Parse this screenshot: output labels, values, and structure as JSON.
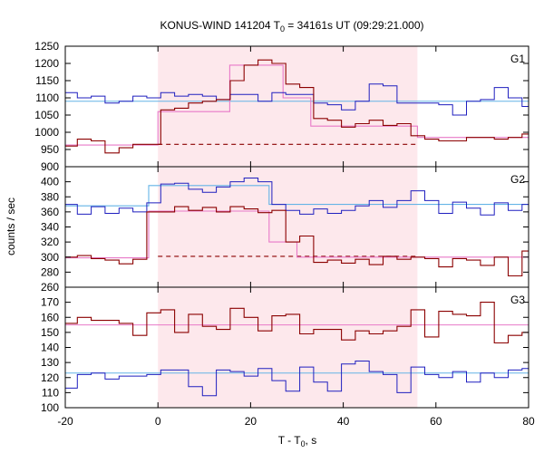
{
  "chart_data": {
    "type": "line",
    "title": "KONUS-WIND 141204 T",
    "title_sub": "0",
    "title_rest": " = 34161s UT (09:29:21.000)",
    "xlabel": "T - T",
    "xlabel_sub": "0",
    "xlabel_rest": ", s",
    "ylabel": "counts / sec",
    "xlim": [
      -20,
      80
    ],
    "x_ticks": [
      "-20",
      "0",
      "20",
      "40",
      "60",
      "80"
    ],
    "shaded_region": {
      "x": [
        0,
        56
      ],
      "color": "#fde8ec"
    },
    "colors": {
      "red": "#8b0000",
      "blue": "#1f1fbf",
      "pink": "#e879c8",
      "cyan": "#64b4e6"
    },
    "panels": [
      {
        "label": "G1",
        "ylim": [
          900,
          1250
        ],
        "y_ticks": [
          "900",
          "950",
          "1000",
          "1050",
          "1100",
          "1150",
          "1200",
          "1250"
        ],
        "bin_edges": [
          -20,
          -17.4,
          -14.4,
          -11.4,
          -8.4,
          -5.4,
          -2.4,
          0.6,
          3.6,
          6.6,
          9.6,
          12.6,
          15.6,
          18.6,
          21.6,
          24.6,
          27.6,
          30.6,
          33.6,
          36.6,
          39.6,
          42.6,
          45.6,
          48.6,
          51.6,
          54.6,
          57.6,
          60.6,
          63.6,
          66.6,
          69.6,
          72.6,
          75.6,
          78.6,
          80
        ],
        "blue": [
          1115,
          1100,
          1105,
          1085,
          1090,
          1105,
          1100,
          1115,
          1105,
          1110,
          1105,
          1095,
          1110,
          1110,
          1090,
          1115,
          1110,
          1110,
          1085,
          1080,
          1065,
          1090,
          1140,
          1135,
          1085,
          1085,
          1085,
          1080,
          1050,
          1090,
          1095,
          1130,
          1100,
          1075
        ],
        "red": [
          960,
          980,
          975,
          940,
          955,
          965,
          965,
          1065,
          1070,
          1085,
          1090,
          1095,
          1150,
          1195,
          1210,
          1200,
          1140,
          1130,
          1040,
          1035,
          1015,
          1025,
          1035,
          1020,
          1025,
          990,
          980,
          975,
          975,
          985,
          985,
          980,
          985,
          995
        ],
        "pink_bins": [
          [
            -20,
            0,
            963
          ],
          [
            0,
            15.5,
            1060
          ],
          [
            15.5,
            27,
            1195
          ],
          [
            27,
            33,
            1100
          ],
          [
            33,
            56,
            1018
          ],
          [
            56,
            80,
            985
          ]
        ],
        "dashed_level": 965,
        "cyan_level": 1090
      },
      {
        "label": "G2",
        "ylim": [
          260,
          420
        ],
        "y_ticks": [
          "260",
          "280",
          "300",
          "320",
          "340",
          "360",
          "380",
          "400"
        ],
        "bin_edges": [
          -20,
          -17.4,
          -14.4,
          -11.4,
          -8.4,
          -5.4,
          -2.4,
          0.6,
          3.6,
          6.6,
          9.6,
          12.6,
          15.6,
          18.6,
          21.6,
          24.6,
          27.6,
          30.6,
          33.6,
          36.6,
          39.6,
          42.6,
          45.6,
          48.6,
          51.6,
          54.6,
          57.6,
          60.6,
          63.6,
          66.6,
          69.6,
          72.6,
          75.6,
          78.6,
          80
        ],
        "blue": [
          370,
          357,
          367,
          358,
          365,
          360,
          372,
          397,
          398,
          390,
          386,
          393,
          400,
          405,
          400,
          370,
          362,
          357,
          364,
          358,
          362,
          368,
          375,
          366,
          375,
          388,
          375,
          358,
          373,
          365,
          356,
          372,
          362,
          370
        ],
        "red": [
          300,
          302,
          298,
          296,
          291,
          297,
          360,
          360,
          367,
          362,
          366,
          360,
          367,
          364,
          359,
          362,
          320,
          328,
          293,
          296,
          292,
          297,
          290,
          301,
          297,
          300,
          298,
          287,
          298,
          296,
          289,
          300,
          275,
          308
        ],
        "pink_bins": [
          [
            -20,
            -2,
            299
          ],
          [
            -2,
            24,
            361
          ],
          [
            24,
            30,
            320
          ],
          [
            30,
            80,
            300
          ]
        ],
        "cyan_bins": [
          [
            -20,
            -2,
            368
          ],
          [
            -2,
            24,
            395
          ],
          [
            24,
            80,
            370
          ]
        ],
        "dashed_level": 301
      },
      {
        "label": "G3",
        "ylim": [
          100,
          180
        ],
        "y_ticks": [
          "100",
          "110",
          "120",
          "130",
          "140",
          "150",
          "160",
          "170"
        ],
        "bin_edges": [
          -20,
          -17.4,
          -14.4,
          -11.4,
          -8.4,
          -5.4,
          -2.4,
          0.6,
          3.6,
          6.6,
          9.6,
          12.6,
          15.6,
          18.6,
          21.6,
          24.6,
          27.6,
          30.6,
          33.6,
          36.6,
          39.6,
          42.6,
          45.6,
          48.6,
          51.6,
          54.6,
          57.6,
          60.6,
          63.6,
          66.6,
          69.6,
          72.6,
          75.6,
          78.6,
          80
        ],
        "blue": [
          113,
          122,
          123,
          119,
          121,
          121,
          122,
          125,
          125,
          114,
          108,
          125,
          124,
          121,
          126,
          118,
          111,
          127,
          117,
          111,
          129,
          131,
          124,
          122,
          110,
          127,
          122,
          120,
          124,
          117,
          123,
          120,
          125,
          126
        ],
        "red": [
          156,
          160,
          158,
          158,
          156,
          148,
          163,
          165,
          150,
          162,
          154,
          152,
          166,
          160,
          151,
          161,
          162,
          149,
          152,
          152,
          145,
          151,
          149,
          151,
          154,
          165,
          147,
          164,
          162,
          161,
          170,
          143,
          148,
          150
        ],
        "cyan_level": 123,
        "pink_level": 155
      }
    ]
  }
}
